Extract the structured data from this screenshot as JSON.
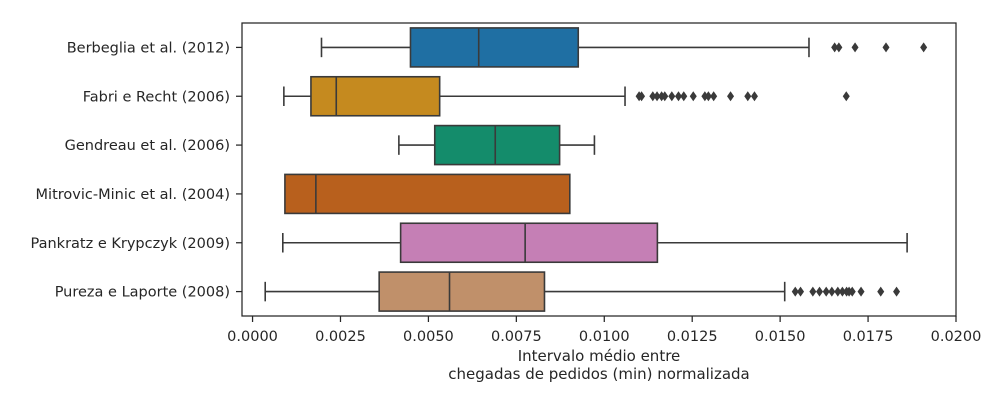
{
  "chart_data": {
    "type": "boxplot",
    "orientation": "horizontal",
    "title": "",
    "xlabel": "Intervalo médio entre\nchegadas de pedidos (min) normalizada",
    "ylabel": "",
    "xlim": [
      -0.0003,
      0.02
    ],
    "xticks": [
      0.0,
      0.0025,
      0.005,
      0.0075,
      0.01,
      0.0125,
      0.015,
      0.0175,
      0.02
    ],
    "xtick_labels": [
      "0.0000",
      "0.0025",
      "0.0050",
      "0.0075",
      "0.0100",
      "0.0125",
      "0.0150",
      "0.0175",
      "0.0200"
    ],
    "grid": false,
    "series": [
      {
        "name": "Berbeglia et al. (2012)",
        "color": "#1f6fa3",
        "whisker_low": 0.00196,
        "q1": 0.00449,
        "median": 0.00643,
        "q3": 0.00926,
        "whisker_high": 0.01582,
        "outliers": [
          0.01655,
          0.01667,
          0.01713,
          0.01801,
          0.01908
        ]
      },
      {
        "name": "Fabri e Recht (2006)",
        "color": "#c58a1f",
        "whisker_low": 0.00089,
        "q1": 0.00166,
        "median": 0.00238,
        "q3": 0.00532,
        "whisker_high": 0.01059,
        "outliers": [
          0.01099,
          0.01106,
          0.01138,
          0.0115,
          0.01163,
          0.01172,
          0.01192,
          0.01211,
          0.01226,
          0.01253,
          0.01286,
          0.01296,
          0.01311,
          0.01359,
          0.01408,
          0.01427,
          0.01688
        ]
      },
      {
        "name": "Gendreau et al. (2006)",
        "color": "#148c6b",
        "whisker_low": 0.00416,
        "q1": 0.00518,
        "median": 0.0069,
        "q3": 0.00873,
        "whisker_high": 0.00972,
        "outliers": []
      },
      {
        "name": "Mitrovic-Minic et al. (2004)",
        "color": "#b8601d",
        "whisker_low": 0.00092,
        "q1": 0.00092,
        "median": 0.0018,
        "q3": 0.00902,
        "whisker_high": 0.00902,
        "outliers": []
      },
      {
        "name": "Pankratz e Krypczyk (2009)",
        "color": "#c57fb5",
        "whisker_low": 0.00086,
        "q1": 0.00421,
        "median": 0.00775,
        "q3": 0.01151,
        "whisker_high": 0.01861,
        "outliers": []
      },
      {
        "name": "Pureza e Laporte (2008)",
        "color": "#c0906a",
        "whisker_low": 0.00036,
        "q1": 0.0036,
        "median": 0.0056,
        "q3": 0.0083,
        "whisker_high": 0.01513,
        "outliers": [
          0.01543,
          0.01558,
          0.01593,
          0.01612,
          0.01631,
          0.01647,
          0.01664,
          0.01677,
          0.01689,
          0.01696,
          0.01705,
          0.0173,
          0.01786,
          0.01831
        ]
      }
    ]
  }
}
